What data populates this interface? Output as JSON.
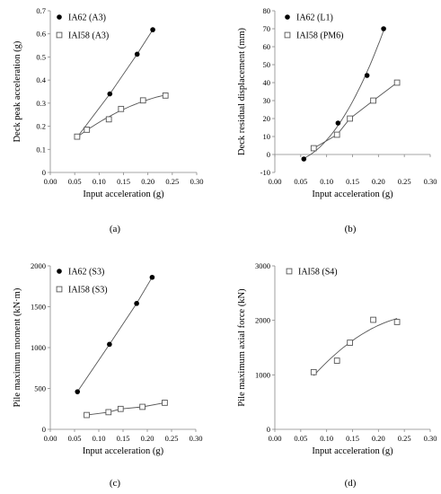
{
  "chart_data": [
    {
      "type": "scatter",
      "panel_label": "(a)",
      "xlabel": "Input acceleration (g)",
      "ylabel": "Deck peak acceleration (g)",
      "xlim": [
        0,
        0.3
      ],
      "ylim": [
        0,
        0.7
      ],
      "x_ticks": [
        "0.00",
        "0.05",
        "0.10",
        "0.15",
        "0.20",
        "0.25",
        "0.30"
      ],
      "y_ticks": [
        "0",
        "0.1",
        "0.2",
        "0.3",
        "0.4",
        "0.5",
        "0.6",
        "0.7"
      ],
      "grid": false,
      "legend_position": "top-left",
      "series": [
        {
          "name": "IA62 (A3)",
          "marker": "filled-circle",
          "x": [
            0.056,
            0.122,
            0.178,
            0.21
          ],
          "y": [
            0.155,
            0.34,
            0.512,
            0.618
          ],
          "trend": "line"
        },
        {
          "name": "IAI58 (A3)",
          "marker": "open-square",
          "x": [
            0.055,
            0.075,
            0.12,
            0.145,
            0.19,
            0.236
          ],
          "y": [
            0.155,
            0.185,
            0.23,
            0.275,
            0.312,
            0.333
          ],
          "trend": "curve"
        }
      ]
    },
    {
      "type": "scatter",
      "panel_label": "(b)",
      "xlabel": "Input acceleration (g)",
      "ylabel": "Deck residual displacement (mm)",
      "xlim": [
        0,
        0.3
      ],
      "ylim": [
        -10,
        80
      ],
      "x_ticks": [
        "0.00",
        "0.05",
        "0.10",
        "0.15",
        "0.20",
        "0.25",
        "0.30"
      ],
      "y_ticks": [
        "-10",
        "0",
        "10",
        "20",
        "30",
        "40",
        "50",
        "60",
        "70",
        "80"
      ],
      "grid": false,
      "legend_position": "top-left",
      "series": [
        {
          "name": "IA62 (L1)",
          "marker": "filled-circle",
          "x": [
            0.056,
            0.122,
            0.178,
            0.21
          ],
          "y": [
            -2.5,
            17.5,
            44,
            70
          ],
          "trend": "curve"
        },
        {
          "name": "IAI58 (PM6)",
          "marker": "open-square",
          "x": [
            0.075,
            0.12,
            0.145,
            0.19,
            0.236
          ],
          "y": [
            3.5,
            11,
            20,
            30,
            40
          ],
          "trend": "line"
        }
      ]
    },
    {
      "type": "scatter",
      "panel_label": "(c)",
      "xlabel": "Input acceleration (g)",
      "ylabel": "Pile maximum moment (kN·m)",
      "xlim": [
        0,
        0.3
      ],
      "ylim": [
        0,
        2000
      ],
      "x_ticks": [
        "0.00",
        "0.05",
        "0.10",
        "0.15",
        "0.20",
        "0.25",
        "0.30"
      ],
      "y_ticks": [
        "0",
        "500",
        "1000",
        "1500",
        "2000"
      ],
      "grid": false,
      "legend_position": "top-left",
      "series": [
        {
          "name": "IA62 (S3)",
          "marker": "filled-circle",
          "x": [
            0.056,
            0.122,
            0.178,
            0.21
          ],
          "y": [
            460,
            1040,
            1540,
            1860
          ],
          "trend": "line"
        },
        {
          "name": "IAI58 (S3)",
          "marker": "open-square",
          "x": [
            0.075,
            0.12,
            0.145,
            0.19,
            0.236
          ],
          "y": [
            175,
            210,
            250,
            275,
            325
          ],
          "trend": "line"
        }
      ]
    },
    {
      "type": "scatter",
      "panel_label": "(d)",
      "xlabel": "Input acceleration (g)",
      "ylabel": "Pile maximum axial force (kN)",
      "xlim": [
        0,
        0.3
      ],
      "ylim": [
        0,
        3000
      ],
      "x_ticks": [
        "0.00",
        "0.05",
        "0.10",
        "0.15",
        "0.20",
        "0.25",
        "0.30"
      ],
      "y_ticks": [
        "0",
        "1000",
        "2000",
        "3000"
      ],
      "grid": false,
      "legend_position": "top-left",
      "series": [
        {
          "name": "IAI58 (S4)",
          "marker": "open-square",
          "x": [
            0.075,
            0.12,
            0.145,
            0.19,
            0.236
          ],
          "y": [
            1050,
            1260,
            1590,
            2010,
            1970
          ],
          "trend": "curve"
        }
      ]
    }
  ]
}
